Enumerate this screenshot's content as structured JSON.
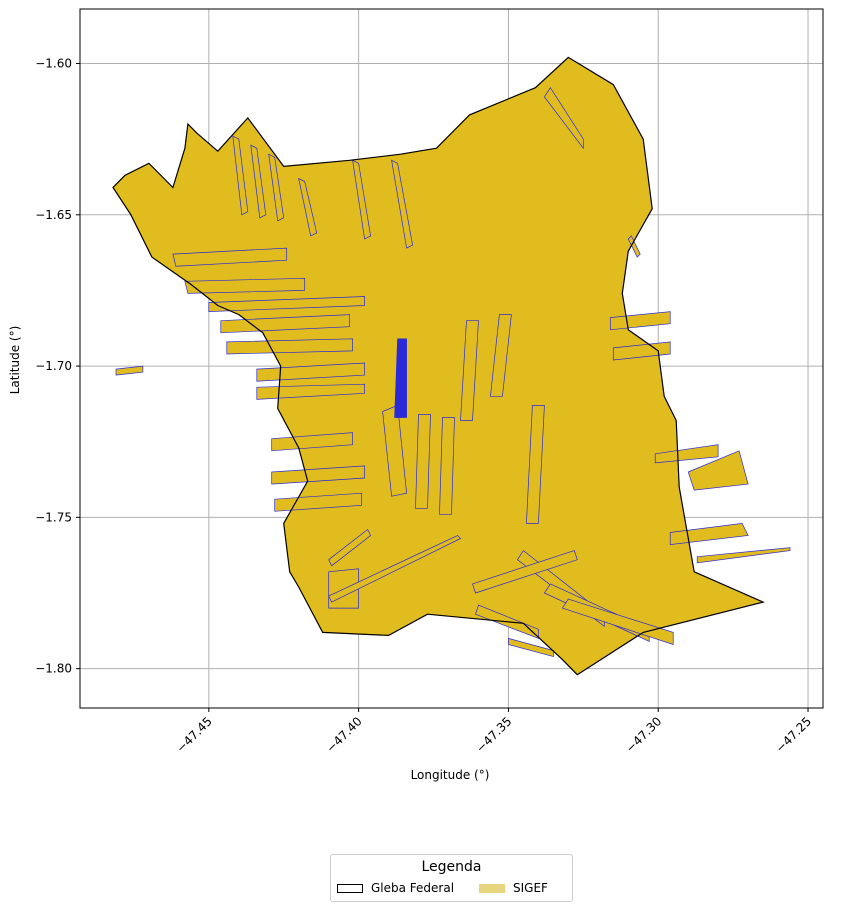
{
  "chart_data": {
    "type": "map",
    "xlabel": "Longitude (°)",
    "ylabel": "Latitude (°)",
    "xlim": [
      -47.493,
      -47.245
    ],
    "ylim": [
      -1.813,
      -1.582
    ],
    "x_ticks": [
      {
        "value": -47.45,
        "label": "−47.45"
      },
      {
        "value": -47.4,
        "label": "−47.40"
      },
      {
        "value": -47.35,
        "label": "−47.35"
      },
      {
        "value": -47.3,
        "label": "−47.30"
      },
      {
        "value": -47.25,
        "label": "−47.25"
      }
    ],
    "y_ticks": [
      {
        "value": -1.6,
        "label": "−1.60"
      },
      {
        "value": -1.65,
        "label": "−1.65"
      },
      {
        "value": -1.7,
        "label": "−1.70"
      },
      {
        "value": -1.75,
        "label": "−1.75"
      },
      {
        "value": -1.8,
        "label": "−1.80"
      }
    ],
    "grid": true,
    "colors": {
      "sigef_fill": "#e0bc1f",
      "sigef_legend": "#e8d67e",
      "parcel_edge": "#2a2ad8",
      "gleba_edge": "#000000",
      "grid": "#b0b0b0"
    },
    "gleba_federal_outline": [
      [
        -47.457,
        -1.62
      ],
      [
        -47.454,
        -1.623
      ],
      [
        -47.447,
        -1.629
      ],
      [
        -47.437,
        -1.618
      ],
      [
        -47.425,
        -1.634
      ],
      [
        -47.403,
        -1.632
      ],
      [
        -47.386,
        -1.63
      ],
      [
        -47.374,
        -1.628
      ],
      [
        -47.363,
        -1.617
      ],
      [
        -47.341,
        -1.608
      ],
      [
        -47.33,
        -1.598
      ],
      [
        -47.315,
        -1.607
      ],
      [
        -47.305,
        -1.625
      ],
      [
        -47.302,
        -1.648
      ],
      [
        -47.31,
        -1.662
      ],
      [
        -47.312,
        -1.676
      ],
      [
        -47.31,
        -1.688
      ],
      [
        -47.3,
        -1.695
      ],
      [
        -47.298,
        -1.71
      ],
      [
        -47.294,
        -1.718
      ],
      [
        -47.293,
        -1.74
      ],
      [
        -47.288,
        -1.768
      ],
      [
        -47.265,
        -1.778
      ],
      [
        -47.305,
        -1.788
      ],
      [
        -47.327,
        -1.802
      ],
      [
        -47.332,
        -1.797
      ],
      [
        -47.345,
        -1.785
      ],
      [
        -47.377,
        -1.782
      ],
      [
        -47.39,
        -1.789
      ],
      [
        -47.412,
        -1.788
      ],
      [
        -47.42,
        -1.773
      ],
      [
        -47.423,
        -1.768
      ],
      [
        -47.425,
        -1.752
      ],
      [
        -47.417,
        -1.738
      ],
      [
        -47.42,
        -1.727
      ],
      [
        -47.427,
        -1.714
      ],
      [
        -47.426,
        -1.7
      ],
      [
        -47.432,
        -1.689
      ],
      [
        -47.44,
        -1.683
      ],
      [
        -47.447,
        -1.68
      ],
      [
        -47.456,
        -1.673
      ],
      [
        -47.469,
        -1.664
      ],
      [
        -47.476,
        -1.65
      ],
      [
        -47.482,
        -1.641
      ],
      [
        -47.478,
        -1.637
      ],
      [
        -47.47,
        -1.633
      ],
      [
        -47.462,
        -1.641
      ],
      [
        -47.458,
        -1.628
      ]
    ],
    "sigef_parcel_strips": [
      [
        [
          -47.442,
          -1.624
        ],
        [
          -47.439,
          -1.65
        ],
        [
          -47.437,
          -1.649
        ],
        [
          -47.44,
          -1.625
        ]
      ],
      [
        [
          -47.436,
          -1.627
        ],
        [
          -47.433,
          -1.651
        ],
        [
          -47.431,
          -1.65
        ],
        [
          -47.434,
          -1.628
        ]
      ],
      [
        [
          -47.43,
          -1.63
        ],
        [
          -47.427,
          -1.652
        ],
        [
          -47.425,
          -1.651
        ],
        [
          -47.428,
          -1.631
        ]
      ],
      [
        [
          -47.42,
          -1.638
        ],
        [
          -47.416,
          -1.657
        ],
        [
          -47.414,
          -1.656
        ],
        [
          -47.418,
          -1.639
        ]
      ],
      [
        [
          -47.402,
          -1.632
        ],
        [
          -47.398,
          -1.658
        ],
        [
          -47.396,
          -1.657
        ],
        [
          -47.4,
          -1.633
        ]
      ],
      [
        [
          -47.389,
          -1.632
        ],
        [
          -47.384,
          -1.661
        ],
        [
          -47.382,
          -1.66
        ],
        [
          -47.387,
          -1.633
        ]
      ],
      [
        [
          -47.462,
          -1.663
        ],
        [
          -47.424,
          -1.661
        ],
        [
          -47.424,
          -1.665
        ],
        [
          -47.461,
          -1.667
        ]
      ],
      [
        [
          -47.458,
          -1.672
        ],
        [
          -47.418,
          -1.671
        ],
        [
          -47.418,
          -1.675
        ],
        [
          -47.457,
          -1.676
        ]
      ],
      [
        [
          -47.45,
          -1.679
        ],
        [
          -47.398,
          -1.677
        ],
        [
          -47.398,
          -1.68
        ],
        [
          -47.45,
          -1.682
        ]
      ],
      [
        [
          -47.446,
          -1.685
        ],
        [
          -47.403,
          -1.683
        ],
        [
          -47.403,
          -1.687
        ],
        [
          -47.446,
          -1.689
        ]
      ],
      [
        [
          -47.444,
          -1.692
        ],
        [
          -47.402,
          -1.691
        ],
        [
          -47.402,
          -1.695
        ],
        [
          -47.444,
          -1.696
        ]
      ],
      [
        [
          -47.434,
          -1.701
        ],
        [
          -47.398,
          -1.699
        ],
        [
          -47.398,
          -1.703
        ],
        [
          -47.434,
          -1.705
        ]
      ],
      [
        [
          -47.434,
          -1.707
        ],
        [
          -47.398,
          -1.706
        ],
        [
          -47.398,
          -1.709
        ],
        [
          -47.434,
          -1.711
        ]
      ],
      [
        [
          -47.429,
          -1.724
        ],
        [
          -47.402,
          -1.722
        ],
        [
          -47.402,
          -1.726
        ],
        [
          -47.429,
          -1.728
        ]
      ],
      [
        [
          -47.429,
          -1.735
        ],
        [
          -47.398,
          -1.733
        ],
        [
          -47.398,
          -1.737
        ],
        [
          -47.429,
          -1.739
        ]
      ],
      [
        [
          -47.428,
          -1.744
        ],
        [
          -47.399,
          -1.742
        ],
        [
          -47.399,
          -1.746
        ],
        [
          -47.428,
          -1.748
        ]
      ],
      [
        [
          -47.392,
          -1.715
        ],
        [
          -47.387,
          -1.713
        ],
        [
          -47.384,
          -1.742
        ],
        [
          -47.389,
          -1.743
        ]
      ],
      [
        [
          -47.38,
          -1.716
        ],
        [
          -47.376,
          -1.716
        ],
        [
          -47.377,
          -1.747
        ],
        [
          -47.381,
          -1.747
        ]
      ],
      [
        [
          -47.372,
          -1.717
        ],
        [
          -47.368,
          -1.717
        ],
        [
          -47.369,
          -1.749
        ],
        [
          -47.373,
          -1.749
        ]
      ],
      [
        [
          -47.364,
          -1.685
        ],
        [
          -47.36,
          -1.685
        ],
        [
          -47.362,
          -1.718
        ],
        [
          -47.366,
          -1.718
        ]
      ],
      [
        [
          -47.353,
          -1.683
        ],
        [
          -47.349,
          -1.683
        ],
        [
          -47.352,
          -1.71
        ],
        [
          -47.356,
          -1.71
        ]
      ],
      [
        [
          -47.342,
          -1.713
        ],
        [
          -47.338,
          -1.713
        ],
        [
          -47.34,
          -1.752
        ],
        [
          -47.344,
          -1.752
        ]
      ],
      [
        [
          -47.316,
          -1.684
        ],
        [
          -47.296,
          -1.682
        ],
        [
          -47.296,
          -1.686
        ],
        [
          -47.316,
          -1.688
        ]
      ],
      [
        [
          -47.315,
          -1.694
        ],
        [
          -47.296,
          -1.692
        ],
        [
          -47.296,
          -1.696
        ],
        [
          -47.315,
          -1.698
        ]
      ],
      [
        [
          -47.301,
          -1.729
        ],
        [
          -47.28,
          -1.726
        ],
        [
          -47.28,
          -1.73
        ],
        [
          -47.301,
          -1.732
        ]
      ],
      [
        [
          -47.29,
          -1.735
        ],
        [
          -47.273,
          -1.728
        ],
        [
          -47.27,
          -1.739
        ],
        [
          -47.288,
          -1.741
        ]
      ],
      [
        [
          -47.296,
          -1.755
        ],
        [
          -47.272,
          -1.752
        ],
        [
          -47.27,
          -1.756
        ],
        [
          -47.296,
          -1.759
        ]
      ],
      [
        [
          -47.287,
          -1.763
        ],
        [
          -47.256,
          -1.76
        ],
        [
          -47.256,
          -1.761
        ],
        [
          -47.287,
          -1.765
        ]
      ],
      [
        [
          -47.41,
          -1.764
        ],
        [
          -47.397,
          -1.754
        ],
        [
          -47.396,
          -1.756
        ],
        [
          -47.409,
          -1.766
        ]
      ],
      [
        [
          -47.41,
          -1.78
        ],
        [
          -47.4,
          -1.78
        ],
        [
          -47.4,
          -1.767
        ],
        [
          -47.41,
          -1.768
        ]
      ],
      [
        [
          -47.409,
          -1.778
        ],
        [
          -47.366,
          -1.757
        ],
        [
          -47.367,
          -1.756
        ],
        [
          -47.41,
          -1.776
        ]
      ],
      [
        [
          -47.345,
          -1.761
        ],
        [
          -47.318,
          -1.782
        ],
        [
          -47.318,
          -1.786
        ],
        [
          -47.347,
          -1.764
        ]
      ],
      [
        [
          -47.336,
          -1.772
        ],
        [
          -47.303,
          -1.787
        ],
        [
          -47.303,
          -1.791
        ],
        [
          -47.338,
          -1.775
        ]
      ],
      [
        [
          -47.33,
          -1.777
        ],
        [
          -47.295,
          -1.788
        ],
        [
          -47.295,
          -1.792
        ],
        [
          -47.332,
          -1.78
        ]
      ],
      [
        [
          -47.362,
          -1.772
        ],
        [
          -47.328,
          -1.761
        ],
        [
          -47.327,
          -1.764
        ],
        [
          -47.361,
          -1.775
        ]
      ],
      [
        [
          -47.36,
          -1.779
        ],
        [
          -47.34,
          -1.787
        ],
        [
          -47.34,
          -1.79
        ],
        [
          -47.361,
          -1.782
        ]
      ],
      [
        [
          -47.35,
          -1.79
        ],
        [
          -47.335,
          -1.794
        ],
        [
          -47.335,
          -1.796
        ],
        [
          -47.35,
          -1.792
        ]
      ],
      [
        [
          -47.336,
          -1.608
        ],
        [
          -47.325,
          -1.625
        ],
        [
          -47.325,
          -1.628
        ],
        [
          -47.338,
          -1.611
        ]
      ],
      [
        [
          -47.31,
          -1.658
        ],
        [
          -47.307,
          -1.664
        ],
        [
          -47.306,
          -1.663
        ],
        [
          -47.309,
          -1.657
        ]
      ],
      [
        [
          -47.481,
          -1.701
        ],
        [
          -47.472,
          -1.7
        ],
        [
          -47.472,
          -1.702
        ],
        [
          -47.481,
          -1.703
        ]
      ]
    ],
    "sigef_highlight": [
      [
        -47.387,
        -1.691
      ],
      [
        -47.384,
        -1.691
      ],
      [
        -47.384,
        -1.717
      ],
      [
        -47.388,
        -1.717
      ]
    ]
  },
  "legend": {
    "title": "Legenda",
    "items": [
      {
        "label": "Gleba Federal",
        "swatch": "outline"
      },
      {
        "label": "SIGEF",
        "swatch": "fill"
      }
    ]
  }
}
